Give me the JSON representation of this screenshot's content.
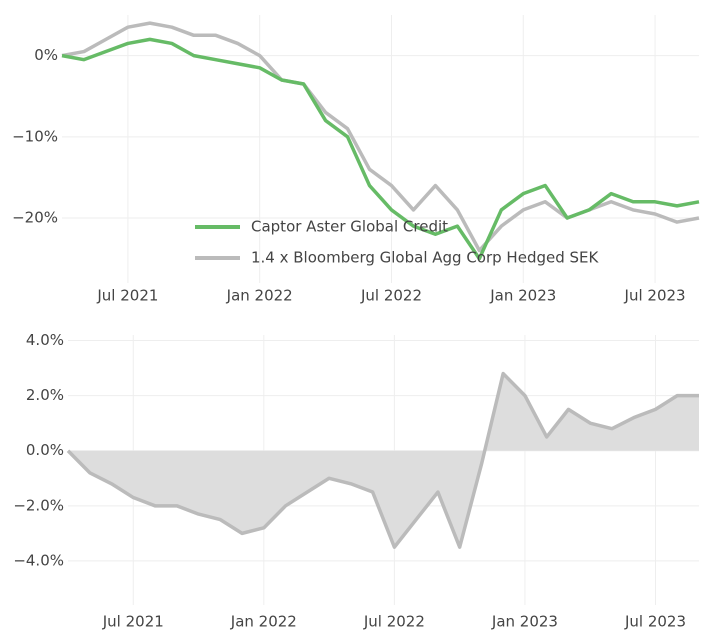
{
  "chart_data": [
    {
      "type": "line",
      "x": [
        "2021-04",
        "2021-05",
        "2021-06",
        "2021-07",
        "2021-08",
        "2021-09",
        "2021-10",
        "2021-11",
        "2021-12",
        "2022-01",
        "2022-02",
        "2022-03",
        "2022-04",
        "2022-05",
        "2022-06",
        "2022-07",
        "2022-08",
        "2022-09",
        "2022-10",
        "2022-11",
        "2022-12",
        "2023-01",
        "2023-02",
        "2023-03",
        "2023-04",
        "2023-05",
        "2023-06",
        "2023-07",
        "2023-08",
        "2023-09"
      ],
      "series": [
        {
          "name": "Captor Aster Global Credit",
          "color": "#66bb66",
          "values": [
            0,
            -0.5,
            0.5,
            1.5,
            2,
            1.5,
            0,
            -0.5,
            -1,
            -1.5,
            -3,
            -3.5,
            -8,
            -10,
            -16,
            -19,
            -21,
            -22,
            -21,
            -25,
            -19,
            -17,
            -16,
            -20,
            -19,
            -17,
            -18,
            -18,
            -18.5,
            -18
          ]
        },
        {
          "name": "1.4 x Bloomberg Global Agg Corp Hedged SEK",
          "color": "#bbbbbb",
          "values": [
            0,
            0.5,
            2,
            3.5,
            4,
            3.5,
            2.5,
            2.5,
            1.5,
            0,
            -3,
            -3.5,
            -7,
            -9,
            -14,
            -16,
            -19,
            -16,
            -19,
            -24,
            -21,
            -19,
            -18,
            -20,
            -19,
            -18,
            -19,
            -19.5,
            -20.5,
            -20
          ]
        }
      ],
      "xlim": [
        "2021-04",
        "2023-09"
      ],
      "xticks": [
        {
          "value": "2021-07",
          "label": "Jul 2021"
        },
        {
          "value": "2022-01",
          "label": "Jan 2022"
        },
        {
          "value": "2022-07",
          "label": "Jul 2022"
        },
        {
          "value": "2023-01",
          "label": "Jan 2023"
        },
        {
          "value": "2023-07",
          "label": "Jul 2023"
        }
      ],
      "ylim": [
        -28,
        5
      ],
      "yticks": [
        {
          "value": 0,
          "label": "0%"
        },
        {
          "value": -10,
          "label": "−10%"
        },
        {
          "value": -20,
          "label": "−20%"
        }
      ],
      "grid": true,
      "legend": "bottom"
    },
    {
      "type": "area",
      "x": [
        "2021-04",
        "2021-05",
        "2021-06",
        "2021-07",
        "2021-08",
        "2021-09",
        "2021-10",
        "2021-11",
        "2021-12",
        "2022-01",
        "2022-02",
        "2022-03",
        "2022-04",
        "2022-05",
        "2022-06",
        "2022-07",
        "2022-08",
        "2022-09",
        "2022-10",
        "2022-11",
        "2022-12",
        "2023-01",
        "2023-02",
        "2023-03",
        "2023-04",
        "2023-05",
        "2023-06",
        "2023-07",
        "2023-08",
        "2023-09"
      ],
      "values": [
        0,
        -0.8,
        -1.2,
        -1.7,
        -2,
        -2,
        -2.3,
        -2.5,
        -3,
        -2.8,
        -2,
        -1.5,
        -1,
        -1.2,
        -1.5,
        -3.5,
        -2.5,
        -1.5,
        -3.5,
        -0.5,
        2.8,
        2,
        0.5,
        1.5,
        1,
        0.8,
        1.2,
        1.5,
        2,
        2
      ],
      "color": "#bbbbbb",
      "xlim": [
        "2021-04",
        "2023-09"
      ],
      "xticks": [
        {
          "value": "2021-07",
          "label": "Jul 2021"
        },
        {
          "value": "2022-01",
          "label": "Jan 2022"
        },
        {
          "value": "2022-07",
          "label": "Jul 2022"
        },
        {
          "value": "2023-01",
          "label": "Jan 2023"
        },
        {
          "value": "2023-07",
          "label": "Jul 2023"
        }
      ],
      "ylim": [
        -5.6,
        4.2
      ],
      "yticks": [
        {
          "value": -4,
          "label": "−4.0%"
        },
        {
          "value": -2,
          "label": "−2.0%"
        },
        {
          "value": 0,
          "label": "0.0%"
        },
        {
          "value": 2,
          "label": "2.0%"
        },
        {
          "value": 4,
          "label": "4.0%"
        }
      ],
      "grid": true
    }
  ]
}
